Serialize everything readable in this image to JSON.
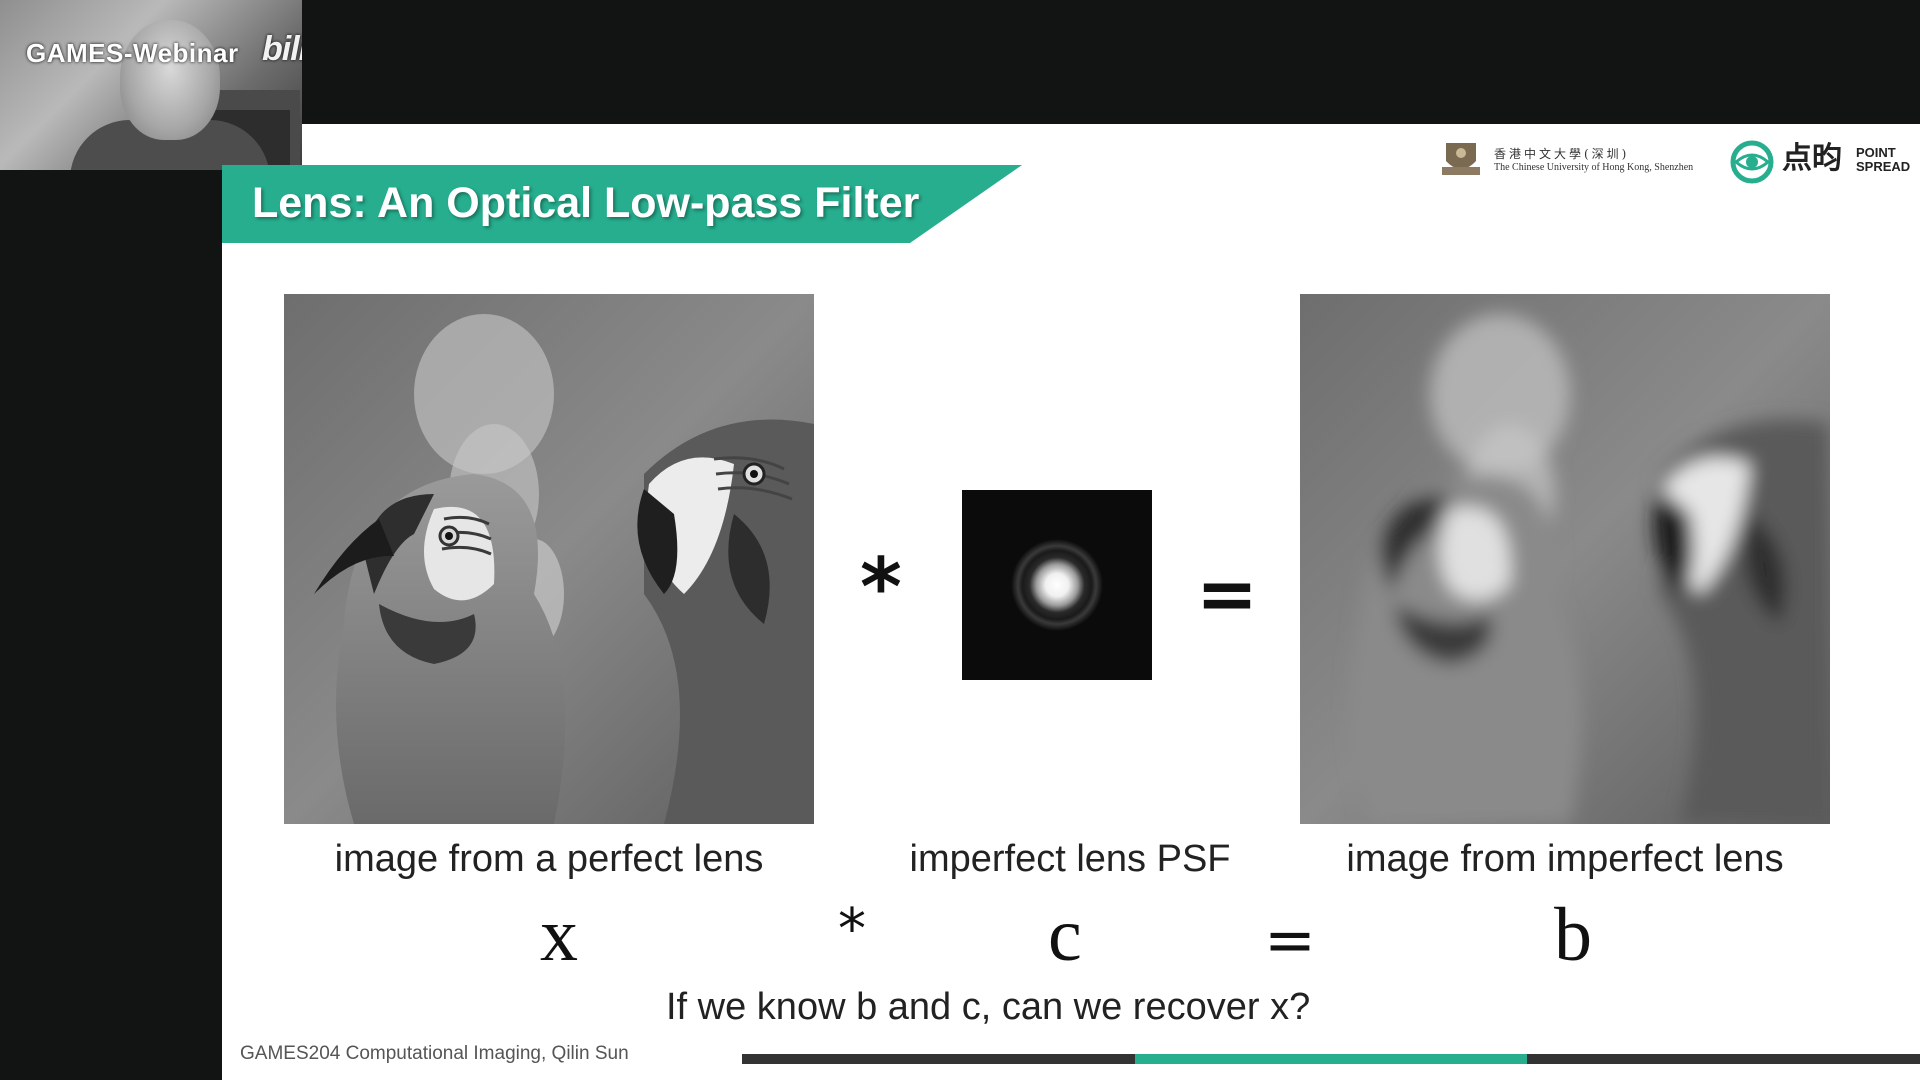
{
  "overlay": {
    "stream_label": "GAMES-Webinar",
    "platform_label": "bilibili"
  },
  "logos": {
    "cuhk_chinese": "香港中文大學(深圳)",
    "cuhk_english": "The Chinese University of Hong Kong, Shenzhen",
    "pointspread_chinese": "点昀",
    "pointspread_english": "POINT SPREAD"
  },
  "slide": {
    "title": "Lens: An Optical Low-pass Filter",
    "operator_convolve": "*",
    "operator_equals": "=",
    "captions": {
      "sharp": "image from a perfect lens",
      "psf": "imperfect lens PSF",
      "blurred": "image from imperfect lens"
    },
    "equation": {
      "x": "x",
      "star": "*",
      "c": "c",
      "eq": "=",
      "b": "b"
    },
    "question": "If we know b and c, can we recover x?",
    "footer": "GAMES204 Computational Imaging, Qilin Sun"
  },
  "colors": {
    "accent": "#26ae8e",
    "background": "#121414",
    "slide_bg": "#ffffff"
  },
  "progress": {
    "segment_index": 2,
    "segment_count": 3
  }
}
